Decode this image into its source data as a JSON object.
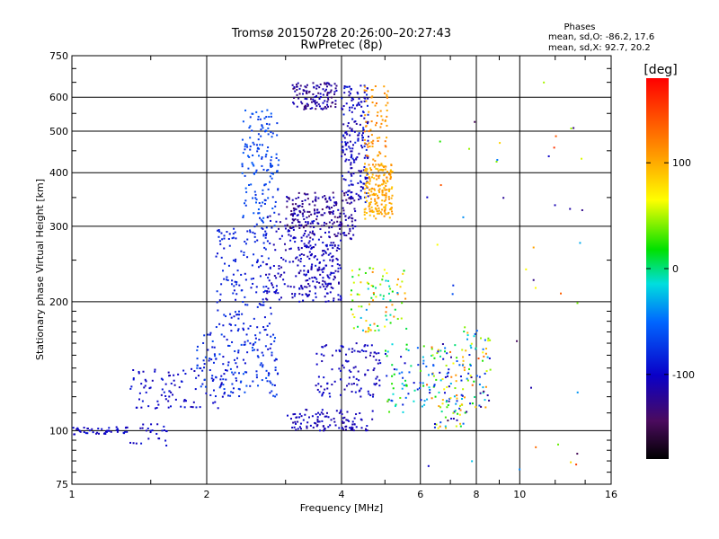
{
  "chart_data": {
    "type": "scatter",
    "title": "Tromsø 20150728 20:26:00–20:27:43",
    "subtitle": "RwPretec (8p)",
    "xlabel": "Frequency [MHz]",
    "ylabel": "Stationary phase Virtual Height [km]",
    "x_scale": "log",
    "y_scale": "log",
    "xlim": [
      1,
      16
    ],
    "ylim": [
      75,
      750
    ],
    "x_ticks": [
      1,
      2,
      4,
      6,
      8,
      10,
      16
    ],
    "x_tick_labels": [
      "1",
      "2",
      "4",
      "6",
      "8",
      "10",
      "16"
    ],
    "y_ticks": [
      75,
      100,
      200,
      300,
      400,
      500,
      600,
      750
    ],
    "y_tick_labels": [
      "75",
      "100",
      "200",
      "300",
      "400",
      "500",
      "600",
      "750"
    ],
    "grid": true,
    "phase_stats": {
      "heading": "Phases",
      "line_o": "mean, sd,O:  -86.2, 17.6",
      "line_x": "mean, sd,X:  92.7, 20.2"
    },
    "colorbar": {
      "label": "[deg]",
      "range": [
        -180,
        180
      ],
      "ticks": [
        100,
        0,
        -100
      ],
      "tick_labels": [
        "100",
        "0",
        "-100"
      ],
      "colormap": "rainbow"
    },
    "clusters": [
      {
        "x": [
          1.0,
          1.35
        ],
        "y": [
          98,
          102
        ],
        "phase": [
          -110,
          -90
        ],
        "n": 45
      },
      {
        "x": [
          1.35,
          1.65
        ],
        "y": [
          92,
          105
        ],
        "phase": [
          -110,
          -90
        ],
        "n": 25
      },
      {
        "x": [
          1.35,
          2.2
        ],
        "y": [
          112,
          140
        ],
        "phase": [
          -110,
          -85
        ],
        "n": 90
      },
      {
        "x": [
          1.9,
          2.9
        ],
        "y": [
          120,
          170
        ],
        "phase": [
          -100,
          -60
        ],
        "n": 160
      },
      {
        "x": [
          2.1,
          2.8
        ],
        "y": [
          170,
          300
        ],
        "phase": [
          -95,
          -75
        ],
        "n": 160
      },
      {
        "x": [
          2.4,
          2.9
        ],
        "y": [
          300,
          560
        ],
        "phase": [
          -80,
          -55
        ],
        "n": 150
      },
      {
        "x": [
          2.7,
          3.5
        ],
        "y": [
          200,
          330
        ],
        "phase": [
          -120,
          -90
        ],
        "n": 120
      },
      {
        "x": [
          3.0,
          4.3
        ],
        "y": [
          280,
          360
        ],
        "phase": [
          -140,
          -100
        ],
        "n": 220
      },
      {
        "x": [
          3.1,
          3.9
        ],
        "y": [
          560,
          650
        ],
        "phase": [
          -140,
          -100
        ],
        "n": 120
      },
      {
        "x": [
          3.2,
          4.0
        ],
        "y": [
          200,
          280
        ],
        "phase": [
          -120,
          -90
        ],
        "n": 160
      },
      {
        "x": [
          3.0,
          4.7
        ],
        "y": [
          100,
          112
        ],
        "phase": [
          -120,
          -95
        ],
        "n": 110
      },
      {
        "x": [
          3.5,
          4.9
        ],
        "y": [
          120,
          160
        ],
        "phase": [
          -115,
          -90
        ],
        "n": 110
      },
      {
        "x": [
          4.0,
          4.6
        ],
        "y": [
          340,
          640
        ],
        "phase": [
          -120,
          -80
        ],
        "n": 200
      },
      {
        "x": [
          4.5,
          5.2
        ],
        "y": [
          310,
          420
        ],
        "phase": [
          90,
          120
        ],
        "n": 200
      },
      {
        "x": [
          4.5,
          5.1
        ],
        "y": [
          420,
          640
        ],
        "phase": [
          100,
          130
        ],
        "n": 70
      },
      {
        "x": [
          4.2,
          5.6
        ],
        "y": [
          170,
          240
        ],
        "phase": [
          -40,
          130
        ],
        "n": 90
      },
      {
        "x": [
          5.0,
          6.3
        ],
        "y": [
          110,
          160
        ],
        "phase": [
          -110,
          40
        ],
        "n": 70
      },
      {
        "x": [
          6.3,
          7.5
        ],
        "y": [
          100,
          160
        ],
        "phase": [
          -120,
          130
        ],
        "n": 100
      },
      {
        "x": [
          7.4,
          8.6
        ],
        "y": [
          110,
          175
        ],
        "phase": [
          -130,
          150
        ],
        "n": 70
      },
      {
        "x": [
          6.0,
          14.0
        ],
        "y": [
          80,
          650
        ],
        "phase": [
          -150,
          160
        ],
        "n": 45
      }
    ]
  }
}
